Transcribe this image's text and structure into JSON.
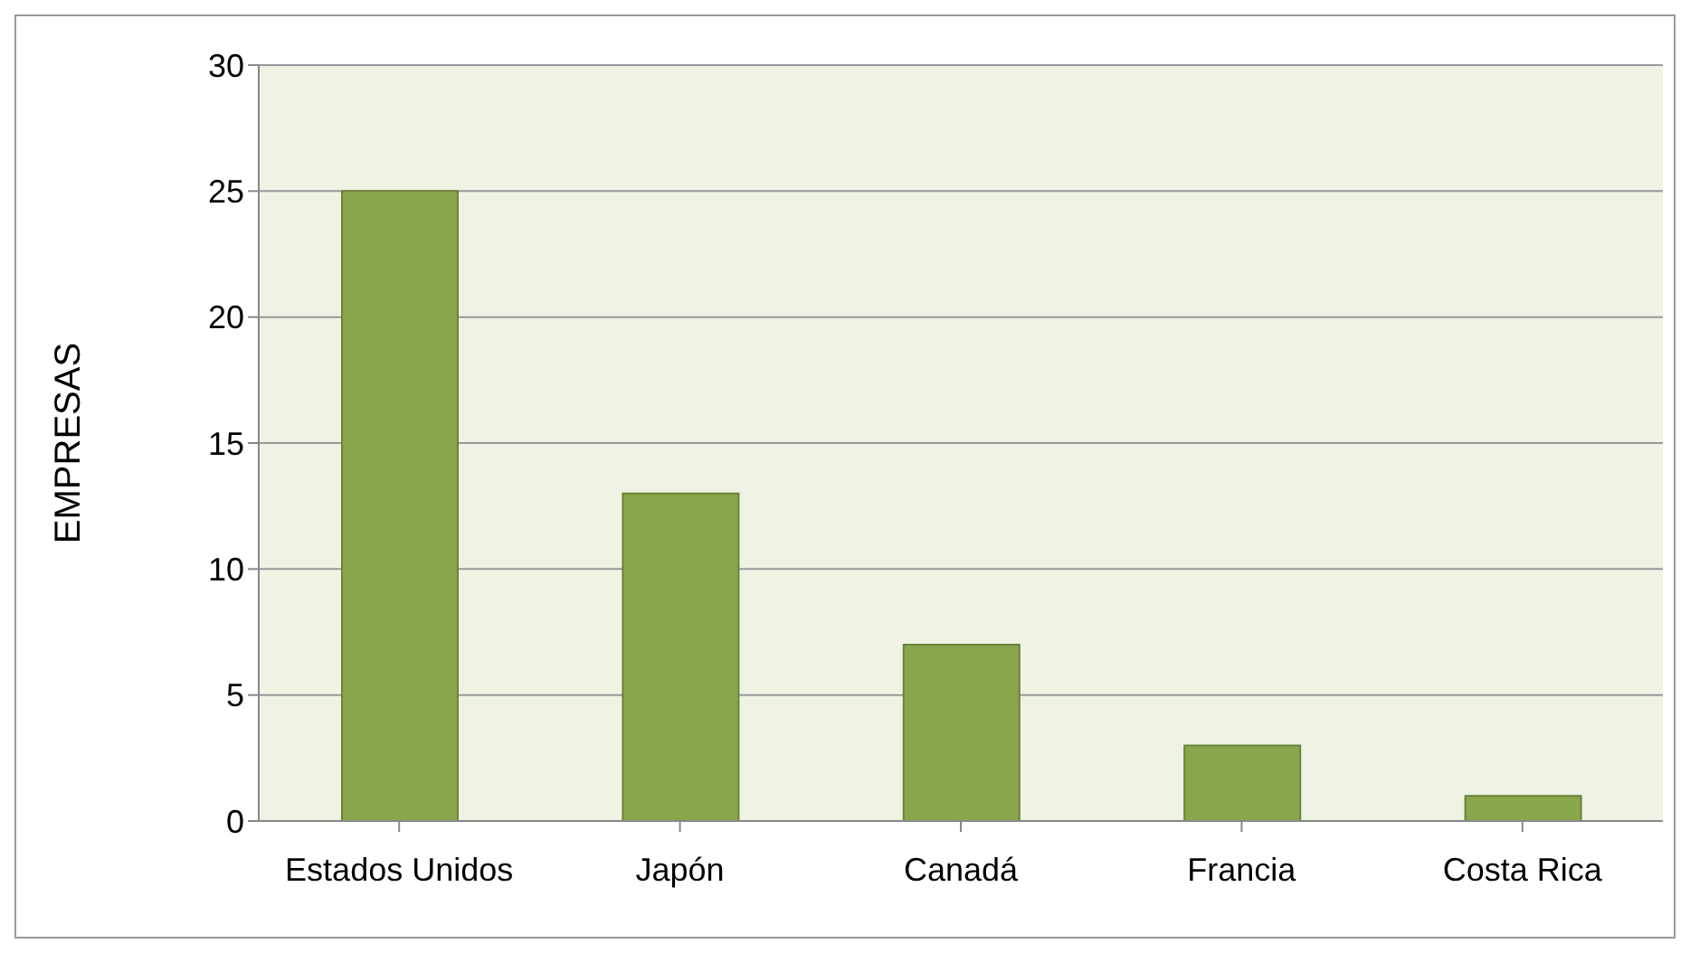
{
  "chart_data": {
    "type": "bar",
    "ylabel": "EMPRESAS",
    "categories": [
      "Estados Unidos",
      "Japón",
      "Canadá",
      "Francia",
      "Costa Rica"
    ],
    "values": [
      25,
      13,
      7,
      3,
      1
    ],
    "color": "#8aa64c",
    "ylim": [
      0,
      30
    ],
    "yticks": [
      0,
      5,
      10,
      15,
      20,
      25,
      30
    ],
    "grid": "y"
  }
}
